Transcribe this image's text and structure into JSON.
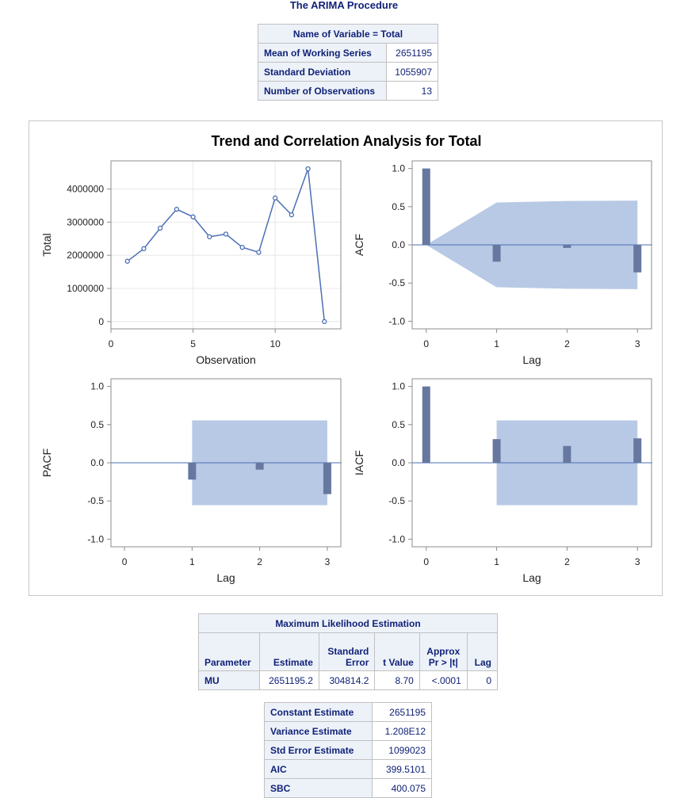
{
  "procedure_title": "The ARIMA Procedure",
  "summary_table": {
    "header": "Name of Variable = Total",
    "rows": [
      {
        "label": "Mean of Working Series",
        "value": "2651195"
      },
      {
        "label": "Standard Deviation",
        "value": "1055907"
      },
      {
        "label": "Number of Observations",
        "value": "13"
      }
    ]
  },
  "chart_data": {
    "type": "panel",
    "title": "Trend and Correlation Analysis for Total",
    "colors": {
      "line": "#4b6fb5",
      "bar": "#66789f",
      "band": "#b7c9e4",
      "axis": "#8c8c8c"
    },
    "plots": [
      {
        "type": "line",
        "xlabel": "Observation",
        "ylabel": "Total",
        "xlim": [
          0,
          14
        ],
        "ylim": [
          -220000,
          4850000
        ],
        "xticks": [
          0,
          5,
          10
        ],
        "yticks": [
          0,
          1000000,
          2000000,
          3000000,
          4000000
        ],
        "xtick_labels": [
          "0",
          "5",
          "10"
        ],
        "ytick_labels": [
          "0",
          "1000000",
          "2000000",
          "3000000",
          "4000000"
        ],
        "grid": true,
        "x": [
          1,
          2,
          3,
          4,
          5,
          6,
          7,
          8,
          9,
          10,
          11,
          12,
          13
        ],
        "y": [
          1820000,
          2200000,
          2820000,
          3390000,
          3160000,
          2560000,
          2640000,
          2240000,
          2090000,
          3730000,
          3220000,
          4610000,
          0
        ]
      },
      {
        "type": "bar",
        "xlabel": "Lag",
        "ylabel": "ACF",
        "xlim": [
          -0.2,
          3.2
        ],
        "ylim": [
          -1.1,
          1.1
        ],
        "xticks": [
          0,
          1,
          2,
          3
        ],
        "yticks": [
          -1.0,
          -0.5,
          0.0,
          0.5,
          1.0
        ],
        "xtick_labels": [
          "0",
          "1",
          "2",
          "3"
        ],
        "ytick_labels": [
          "-1.0",
          "-0.5",
          "0.0",
          "0.5",
          "1.0"
        ],
        "lags": [
          0,
          1,
          2,
          3
        ],
        "values": [
          1.0,
          -0.22,
          -0.04,
          -0.36
        ],
        "band_upper": [
          0,
          0.555,
          0.575,
          0.58
        ],
        "band_lower": [
          0,
          -0.555,
          -0.575,
          -0.58
        ]
      },
      {
        "type": "bar",
        "xlabel": "Lag",
        "ylabel": "PACF",
        "xlim": [
          -0.2,
          3.2
        ],
        "ylim": [
          -1.1,
          1.1
        ],
        "xticks": [
          0,
          1,
          2,
          3
        ],
        "yticks": [
          -1.0,
          -0.5,
          0.0,
          0.5,
          1.0
        ],
        "xtick_labels": [
          "0",
          "1",
          "2",
          "3"
        ],
        "ytick_labels": [
          "-1.0",
          "-0.5",
          "0.0",
          "0.5",
          "1.0"
        ],
        "lags": [
          1,
          2,
          3
        ],
        "values": [
          -0.22,
          -0.09,
          -0.41
        ],
        "band_upper": [
          0.555,
          0.555,
          0.555
        ],
        "band_lower": [
          -0.555,
          -0.555,
          -0.555
        ]
      },
      {
        "type": "bar",
        "xlabel": "Lag",
        "ylabel": "IACF",
        "xlim": [
          -0.2,
          3.2
        ],
        "ylim": [
          -1.1,
          1.1
        ],
        "xticks": [
          0,
          1,
          2,
          3
        ],
        "yticks": [
          -1.0,
          -0.5,
          0.0,
          0.5,
          1.0
        ],
        "xtick_labels": [
          "0",
          "1",
          "2",
          "3"
        ],
        "ytick_labels": [
          "-1.0",
          "-0.5",
          "0.0",
          "0.5",
          "1.0"
        ],
        "lags": [
          0,
          1,
          2,
          3
        ],
        "values": [
          1.0,
          0.31,
          0.22,
          0.32
        ],
        "band_upper": [
          0.555,
          0.555,
          0.555
        ],
        "band_lower": [
          -0.555,
          -0.555,
          -0.555
        ],
        "band_lags": [
          1,
          2,
          3
        ]
      }
    ]
  },
  "mle_table": {
    "header": "Maximum Likelihood Estimation",
    "columns": [
      {
        "line1": "",
        "line2": "Parameter"
      },
      {
        "line1": "",
        "line2": "Estimate"
      },
      {
        "line1": "Standard",
        "line2": "Error"
      },
      {
        "line1": "",
        "line2": "t Value"
      },
      {
        "line1": "Approx",
        "line2": "Pr > |t|"
      },
      {
        "line1": "",
        "line2": "Lag"
      }
    ],
    "row": {
      "parameter": "MU",
      "estimate": "2651195.2",
      "std_error": "304814.2",
      "t_value": "8.70",
      "p_value": "<.0001",
      "lag": "0"
    }
  },
  "fit_table": {
    "rows": [
      {
        "label": "Constant Estimate",
        "value": "2651195"
      },
      {
        "label": "Variance Estimate",
        "value": "1.208E12"
      },
      {
        "label": "Std Error Estimate",
        "value": "1099023"
      },
      {
        "label": "AIC",
        "value": "399.5101"
      },
      {
        "label": "SBC",
        "value": "400.075"
      }
    ]
  }
}
